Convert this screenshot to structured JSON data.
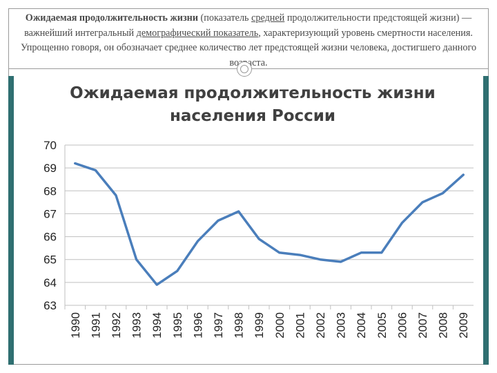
{
  "caption": {
    "bold_lead": "Ожидаемая продолжительность жизни",
    "part1": " (показатель ",
    "link1": "средней",
    "part2": " продолжительности предстоящей жизни) — важнейший интегральный ",
    "link2": "демографический показатель",
    "part3": ", характеризующий уровень смертности населения. Упрощенно говоря, он обозначает среднее количество лет предстоящей жизни человека, достигшего данного возраста."
  },
  "colors": {
    "line": "#4a7ebb",
    "grid": "#bfbfbf",
    "side_bar": "#2f6f71"
  },
  "chart_data": {
    "type": "line",
    "title": "Ожидаемая продолжительность жизни населения России",
    "title_line1": "Ожидаемая продолжительность жизни",
    "title_line2": "населения России",
    "categories": [
      "1990",
      "1991",
      "1992",
      "1993",
      "1994",
      "1995",
      "1996",
      "1997",
      "1998",
      "1999",
      "2000",
      "2001",
      "2002",
      "2003",
      "2004",
      "2005",
      "2006",
      "2007",
      "2008",
      "2009"
    ],
    "series": [
      {
        "values": [
          69.2,
          68.9,
          67.8,
          65.0,
          63.9,
          64.5,
          65.8,
          66.7,
          67.1,
          65.9,
          65.3,
          65.2,
          65.0,
          64.9,
          65.3,
          65.3,
          66.6,
          67.5,
          67.9,
          68.7
        ]
      }
    ],
    "yticks": [
      63,
      64,
      65,
      66,
      67,
      68,
      69,
      70
    ],
    "ylim": [
      63,
      70
    ],
    "xlabel": "",
    "ylabel": "",
    "grid": true,
    "legend": "none"
  }
}
